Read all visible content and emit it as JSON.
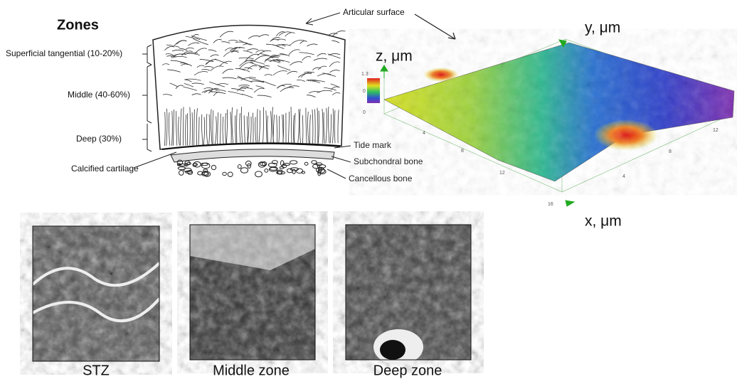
{
  "zones_diagram": {
    "title": "Zones",
    "articular_surface": "Articular surface",
    "zone_labels": [
      "Superficial tangential (10-20%)",
      "Middle (40-60%)",
      "Deep (30%)",
      "Calcified cartilage"
    ],
    "bone_labels": [
      "Tide mark",
      "Subchondral bone",
      "Cancellous bone"
    ]
  },
  "surface_plot": {
    "y_label": "y, μm",
    "z_label": "z, μm",
    "x_label": "x, μm",
    "colorbar_ticks": [
      "1.3",
      "0",
      "0"
    ],
    "x_ticks": [
      "4",
      "8",
      "12",
      "16"
    ],
    "y_ticks": [
      "4",
      "8",
      "12"
    ]
  },
  "micrographs": {
    "captions": [
      "STZ",
      "Middle zone",
      "Deep zone"
    ]
  }
}
